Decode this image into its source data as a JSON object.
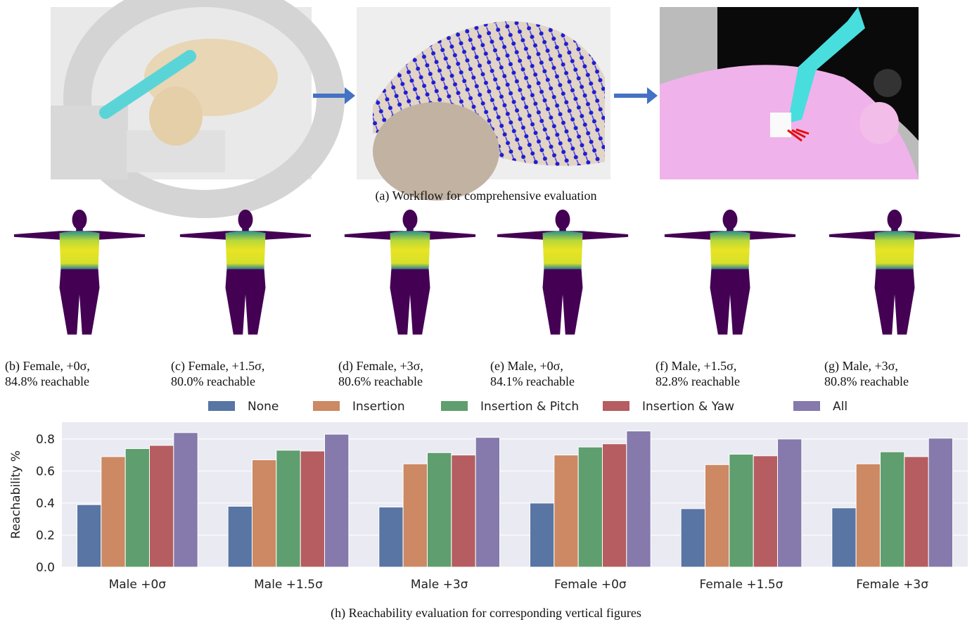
{
  "figure": {
    "caption_a": "(a) Workflow for comprehensive evaluation",
    "panels": [
      {
        "line1": "(b) Female, +0σ,",
        "line2": "84.8% reachable"
      },
      {
        "line1": "(c) Female, +1.5σ,",
        "line2": "80.0% reachable"
      },
      {
        "line1": "(d) Female, +3σ,",
        "line2": "80.6% reachable"
      },
      {
        "line1": "(e) Male, +0σ,",
        "line2": "84.1% reachable"
      },
      {
        "line1": "(f) Male, +1.5σ,",
        "line2": "82.8% reachable"
      },
      {
        "line1": "(g) Male, +3σ,",
        "line2": "80.8% reachable"
      }
    ],
    "caption_h": "(h) Reachability evaluation for corresponding vertical figures"
  },
  "chart_data": {
    "type": "bar",
    "y_label": "Reachability %",
    "categories": [
      "Male +0σ",
      "Male +1.5σ",
      "Male +3σ",
      "Female +0σ",
      "Female +1.5σ",
      "Female +3σ"
    ],
    "series": [
      {
        "name": "None",
        "color": "#5975a4",
        "values": [
          0.39,
          0.38,
          0.375,
          0.4,
          0.365,
          0.37
        ]
      },
      {
        "name": "Insertion",
        "color": "#cc8963",
        "values": [
          0.69,
          0.67,
          0.645,
          0.7,
          0.64,
          0.645
        ]
      },
      {
        "name": "Insertion & Pitch",
        "color": "#5f9e6e",
        "values": [
          0.74,
          0.73,
          0.715,
          0.75,
          0.705,
          0.72
        ]
      },
      {
        "name": "Insertion & Yaw",
        "color": "#b55d60",
        "values": [
          0.76,
          0.725,
          0.7,
          0.77,
          0.695,
          0.69
        ]
      },
      {
        "name": "All",
        "color": "#857aab",
        "values": [
          0.84,
          0.83,
          0.81,
          0.85,
          0.8,
          0.805
        ]
      }
    ],
    "ylim": [
      0,
      0.905
    ],
    "yticks": [
      {
        "value": 0,
        "label": "0.0"
      },
      0.2,
      0.4,
      0.6,
      0.8
    ],
    "grid": true
  }
}
